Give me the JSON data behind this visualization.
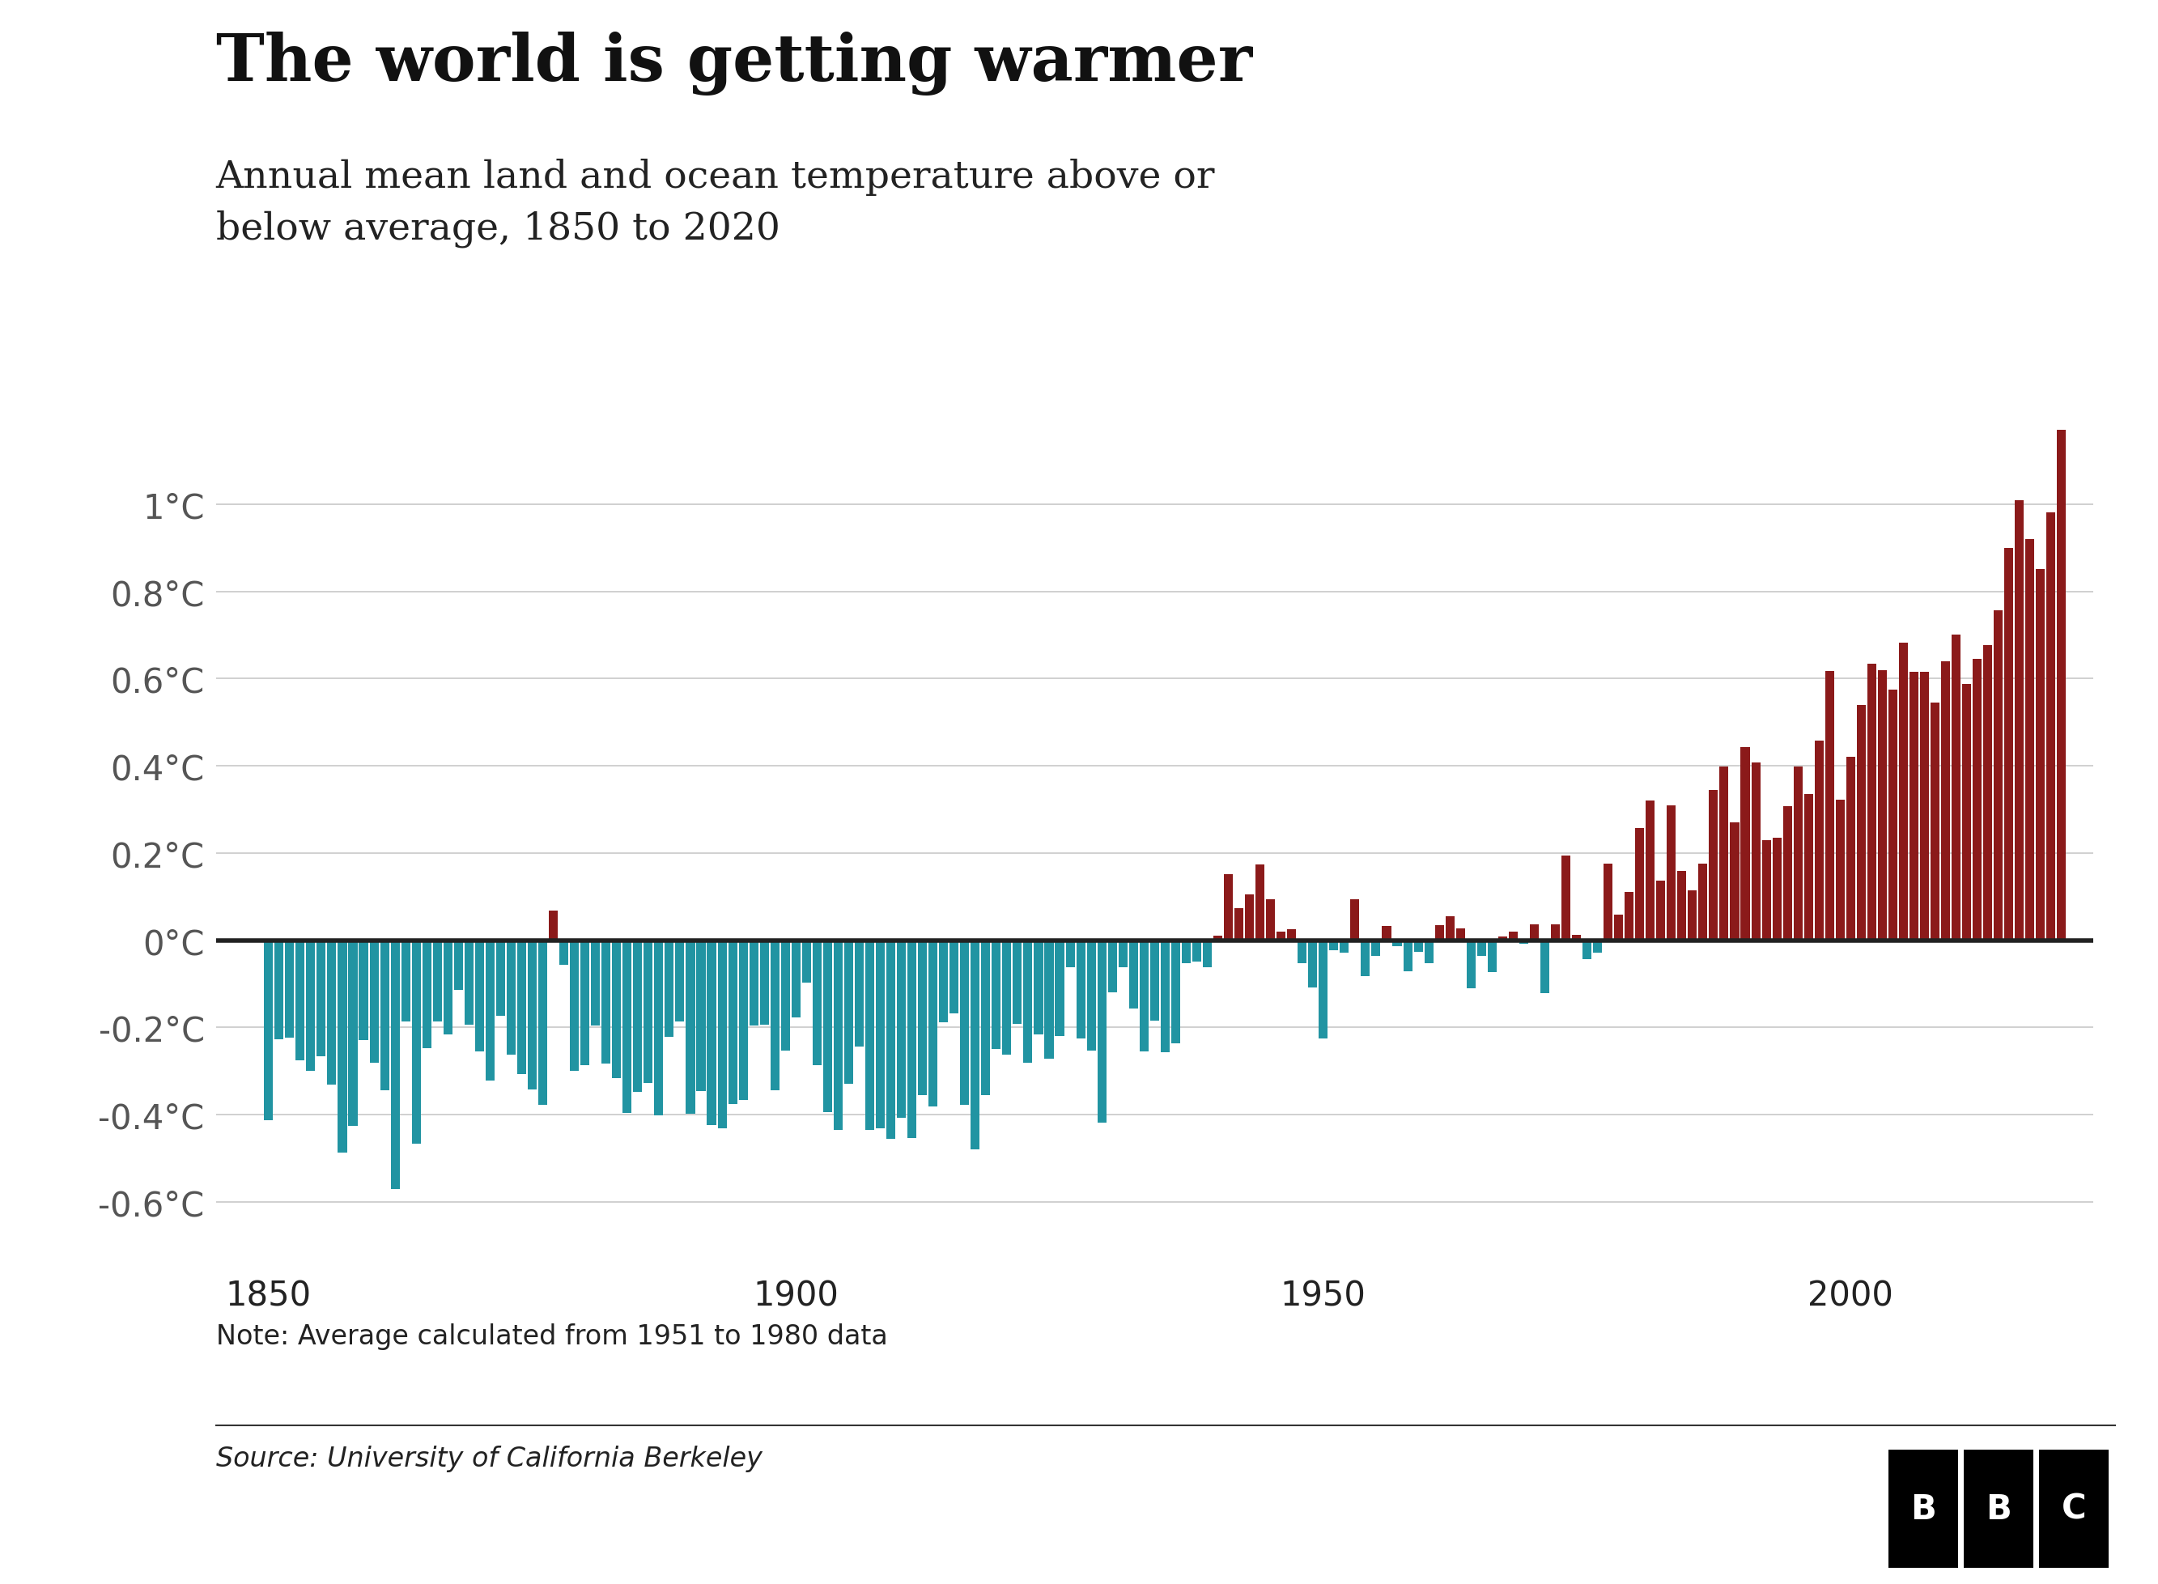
{
  "title": "The world is getting warmer",
  "subtitle": "Annual mean land and ocean temperature above or\nbelow average, 1850 to 2020",
  "note": "Note: Average calculated from 1951 to 1980 data",
  "source": "Source: University of California Berkeley",
  "title_fontsize": 58,
  "subtitle_fontsize": 34,
  "note_fontsize": 24,
  "source_fontsize": 24,
  "tick_fontsize": 30,
  "ylim": [
    -0.75,
    1.25
  ],
  "yticks": [
    -0.6,
    -0.4,
    -0.2,
    0.0,
    0.2,
    0.4,
    0.6,
    0.8,
    1.0
  ],
  "ytick_labels": [
    "-0.6°C",
    "-0.4°C",
    "-0.2°C",
    "0°C",
    "0.2°C",
    "0.4°C",
    "0.6°C",
    "0.8°C",
    "1°C"
  ],
  "xticks": [
    1850,
    1900,
    1950,
    2000
  ],
  "xlim": [
    1845,
    2023
  ],
  "color_positive": "#8B1A1A",
  "color_negative": "#2194A2",
  "background_color": "#FFFFFF",
  "zero_line_color": "#222222",
  "grid_color": "#C8C8C8",
  "years": [
    1850,
    1851,
    1852,
    1853,
    1854,
    1855,
    1856,
    1857,
    1858,
    1859,
    1860,
    1861,
    1862,
    1863,
    1864,
    1865,
    1866,
    1867,
    1868,
    1869,
    1870,
    1871,
    1872,
    1873,
    1874,
    1875,
    1876,
    1877,
    1878,
    1879,
    1880,
    1881,
    1882,
    1883,
    1884,
    1885,
    1886,
    1887,
    1888,
    1889,
    1890,
    1891,
    1892,
    1893,
    1894,
    1895,
    1896,
    1897,
    1898,
    1899,
    1900,
    1901,
    1902,
    1903,
    1904,
    1905,
    1906,
    1907,
    1908,
    1909,
    1910,
    1911,
    1912,
    1913,
    1914,
    1915,
    1916,
    1917,
    1918,
    1919,
    1920,
    1921,
    1922,
    1923,
    1924,
    1925,
    1926,
    1927,
    1928,
    1929,
    1930,
    1931,
    1932,
    1933,
    1934,
    1935,
    1936,
    1937,
    1938,
    1939,
    1940,
    1941,
    1942,
    1943,
    1944,
    1945,
    1946,
    1947,
    1948,
    1949,
    1950,
    1951,
    1952,
    1953,
    1954,
    1955,
    1956,
    1957,
    1958,
    1959,
    1960,
    1961,
    1962,
    1963,
    1964,
    1965,
    1966,
    1967,
    1968,
    1969,
    1970,
    1971,
    1972,
    1973,
    1974,
    1975,
    1976,
    1977,
    1978,
    1979,
    1980,
    1981,
    1982,
    1983,
    1984,
    1985,
    1986,
    1987,
    1988,
    1989,
    1990,
    1991,
    1992,
    1993,
    1994,
    1995,
    1996,
    1997,
    1998,
    1999,
    2000,
    2001,
    2002,
    2003,
    2004,
    2005,
    2006,
    2007,
    2008,
    2009,
    2010,
    2011,
    2012,
    2013,
    2014,
    2015,
    2016,
    2017,
    2018,
    2019,
    2020
  ],
  "anomalies": [
    -0.414,
    -0.228,
    -0.224,
    -0.276,
    -0.3,
    -0.267,
    -0.331,
    -0.487,
    -0.426,
    -0.229,
    -0.282,
    -0.345,
    -0.571,
    -0.187,
    -0.467,
    -0.248,
    -0.187,
    -0.217,
    -0.114,
    -0.194,
    -0.255,
    -0.322,
    -0.173,
    -0.263,
    -0.308,
    -0.342,
    -0.378,
    0.067,
    -0.056,
    -0.299,
    -0.287,
    -0.195,
    -0.283,
    -0.316,
    -0.397,
    -0.348,
    -0.328,
    -0.402,
    -0.222,
    -0.187,
    -0.398,
    -0.346,
    -0.425,
    -0.432,
    -0.376,
    -0.367,
    -0.195,
    -0.194,
    -0.345,
    -0.253,
    -0.177,
    -0.097,
    -0.286,
    -0.394,
    -0.435,
    -0.329,
    -0.244,
    -0.435,
    -0.432,
    -0.455,
    -0.408,
    -0.454,
    -0.355,
    -0.381,
    -0.189,
    -0.168,
    -0.378,
    -0.48,
    -0.356,
    -0.249,
    -0.262,
    -0.193,
    -0.282,
    -0.216,
    -0.272,
    -0.22,
    -0.063,
    -0.225,
    -0.253,
    -0.418,
    -0.12,
    -0.063,
    -0.157,
    -0.256,
    -0.185,
    -0.258,
    -0.237,
    -0.052,
    -0.049,
    -0.063,
    0.01,
    0.152,
    0.073,
    0.105,
    0.174,
    0.094,
    0.02,
    0.025,
    -0.052,
    -0.109,
    -0.226,
    -0.024,
    -0.029,
    0.093,
    -0.082,
    -0.037,
    0.032,
    -0.013,
    -0.071,
    -0.026,
    -0.052,
    0.034,
    0.055,
    0.027,
    -0.111,
    -0.036,
    -0.074,
    0.009,
    0.019,
    -0.009,
    0.036,
    -0.121,
    0.036,
    0.194,
    0.013,
    -0.044,
    -0.028,
    0.175,
    0.058,
    0.11,
    0.258,
    0.321,
    0.136,
    0.309,
    0.159,
    0.115,
    0.176,
    0.345,
    0.398,
    0.271,
    0.443,
    0.407,
    0.229,
    0.235,
    0.307,
    0.399,
    0.336,
    0.458,
    0.617,
    0.323,
    0.42,
    0.54,
    0.635,
    0.62,
    0.574,
    0.683,
    0.615,
    0.616,
    0.545,
    0.64,
    0.701,
    0.588,
    0.645,
    0.677,
    0.757,
    0.9,
    1.01,
    0.921,
    0.851,
    0.982,
    1.171
  ]
}
